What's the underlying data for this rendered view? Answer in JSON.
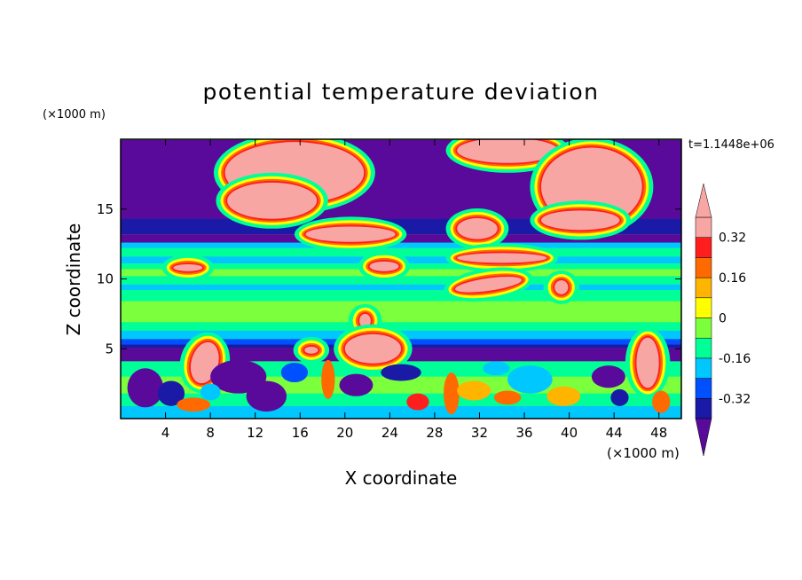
{
  "chart_data": {
    "type": "heatmap",
    "title": "potential temperature deviation",
    "xlabel": "X coordinate",
    "ylabel": "Z coordinate",
    "x_unit": "(×1000 m)",
    "y_unit": "(×1000 m)",
    "time_label": "t=1.1448e+06",
    "xlim": [
      0,
      50
    ],
    "ylim": [
      0,
      20
    ],
    "x_ticks": [
      4,
      8,
      12,
      16,
      20,
      24,
      28,
      32,
      36,
      40,
      44,
      48
    ],
    "y_ticks": [
      5,
      10,
      15
    ],
    "colorbar": {
      "levels": [
        -0.4,
        -0.32,
        -0.24,
        -0.16,
        -0.08,
        0,
        0.08,
        0.16,
        0.24,
        0.32,
        0.4
      ],
      "labels": [
        "-0.32",
        "-0.16",
        "0",
        "0.16",
        "0.32"
      ],
      "label_values": [
        -0.32,
        -0.16,
        0,
        0.16,
        0.32
      ],
      "colors": [
        "#5a0a9b",
        "#1a1aa6",
        "#0050ff",
        "#00c8ff",
        "#00ff96",
        "#7cff3c",
        "#ffff00",
        "#ffb400",
        "#ff6a00",
        "#ff1e1e",
        "#f7a6a4"
      ],
      "extend": "both"
    }
  }
}
